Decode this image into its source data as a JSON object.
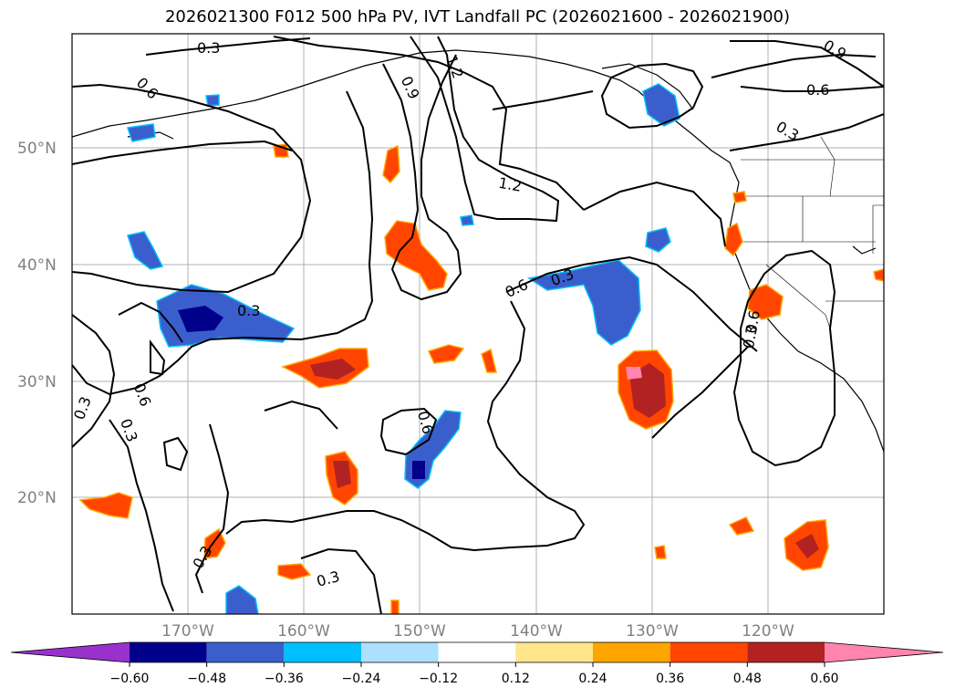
{
  "title": "2026021300 F012 500 hPa PV, IVT Landfall PC (2026021600 - 2026021900)",
  "latitudes": [
    "50°N",
    "40°N",
    "30°N",
    "20°N"
  ],
  "longitudes": [
    "170°W",
    "160°W",
    "150°W",
    "140°W",
    "130°W",
    "120°W"
  ],
  "contour_labels": [
    "0.3",
    "0.6",
    "1.2",
    "0.9",
    "1.2",
    "0.6",
    "0.3",
    "0.9",
    "0.6",
    "0.3",
    "0.3",
    "0.6",
    "0.3",
    "0.3",
    "0.6",
    "0.3",
    "0.3",
    "0.6",
    "0.3",
    "0.6"
  ],
  "colorbar": {
    "ticks": [
      "−0.60",
      "−0.48",
      "−0.36",
      "−0.24",
      "−0.12",
      "0.12",
      "0.24",
      "0.36",
      "0.48",
      "0.60"
    ],
    "colors": [
      "#9932CC",
      "#00008B",
      "#3A5FCD",
      "#00BFFF",
      "#ADDFFF",
      "#FFFFFF",
      "#FFE68A",
      "#FFA500",
      "#FF4500",
      "#B22222",
      "#FF85B0"
    ]
  }
}
